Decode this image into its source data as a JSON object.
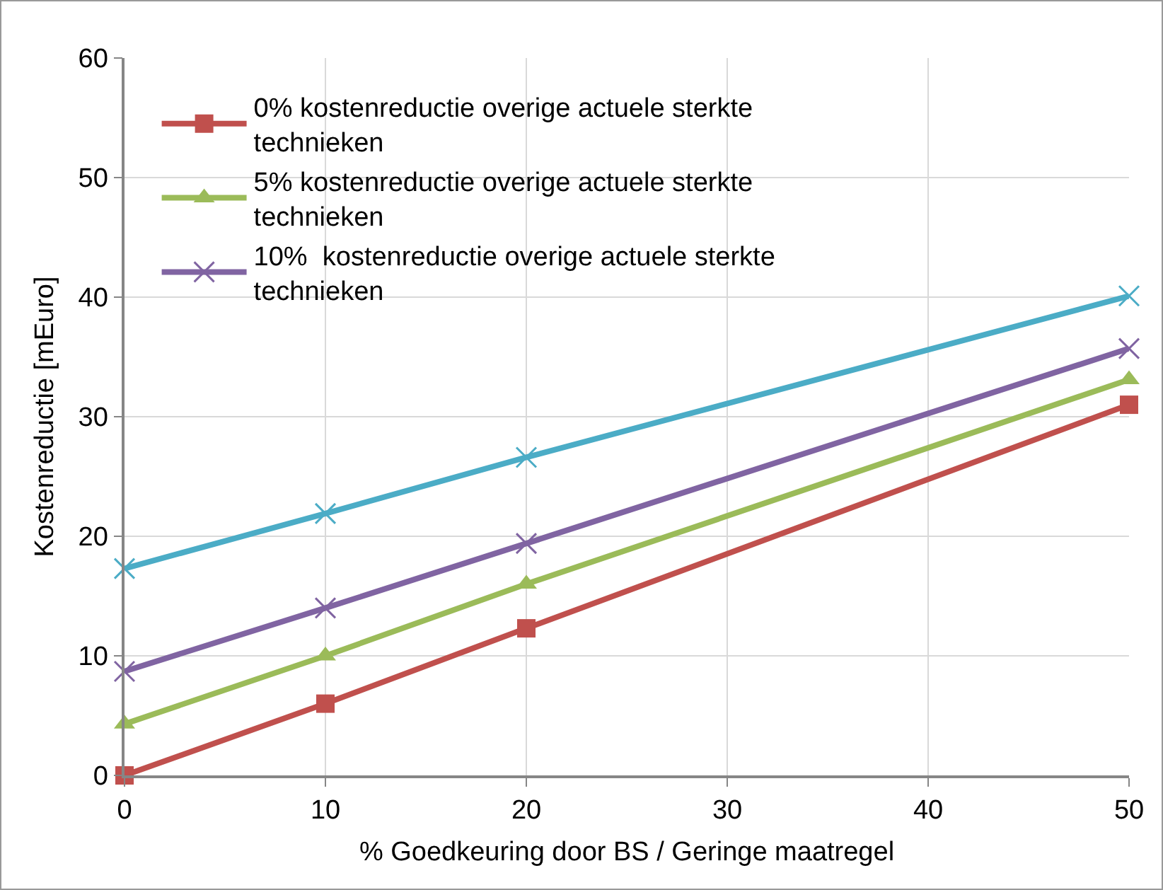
{
  "chart_data": {
    "type": "line",
    "xlabel": "% Goedkeuring door BS / Geringe maatregel",
    "ylabel": "Kostenreductie [mEuro]",
    "x": [
      0,
      10,
      20,
      50
    ],
    "xlim": [
      0,
      50
    ],
    "xticks": [
      0,
      10,
      20,
      30,
      40,
      50
    ],
    "ylim": [
      0,
      60
    ],
    "yticks": [
      0,
      10,
      20,
      30,
      40,
      50,
      60
    ],
    "grid": true,
    "legend": "top left",
    "series": [
      {
        "name": "0% kostenreductie overige actuele sterkte technieken",
        "color": "#c0504d",
        "marker": "square",
        "values": [
          0,
          6.0,
          12.3,
          31.0
        ]
      },
      {
        "name": "5% kostenreductie overige actuele sterkte technieken",
        "color": "#9bbb59",
        "marker": "triangle",
        "values": [
          4.3,
          10.0,
          16.0,
          33.1
        ]
      },
      {
        "name": "10%  kostenreductie overige actuele sterkte technieken",
        "color": "#8064a2",
        "marker": "cross",
        "values": [
          8.7,
          14.0,
          19.4,
          35.7
        ]
      },
      {
        "color": "#4bacc6",
        "marker": "cross",
        "values": [
          17.3,
          21.9,
          26.6,
          40.1
        ]
      }
    ]
  }
}
